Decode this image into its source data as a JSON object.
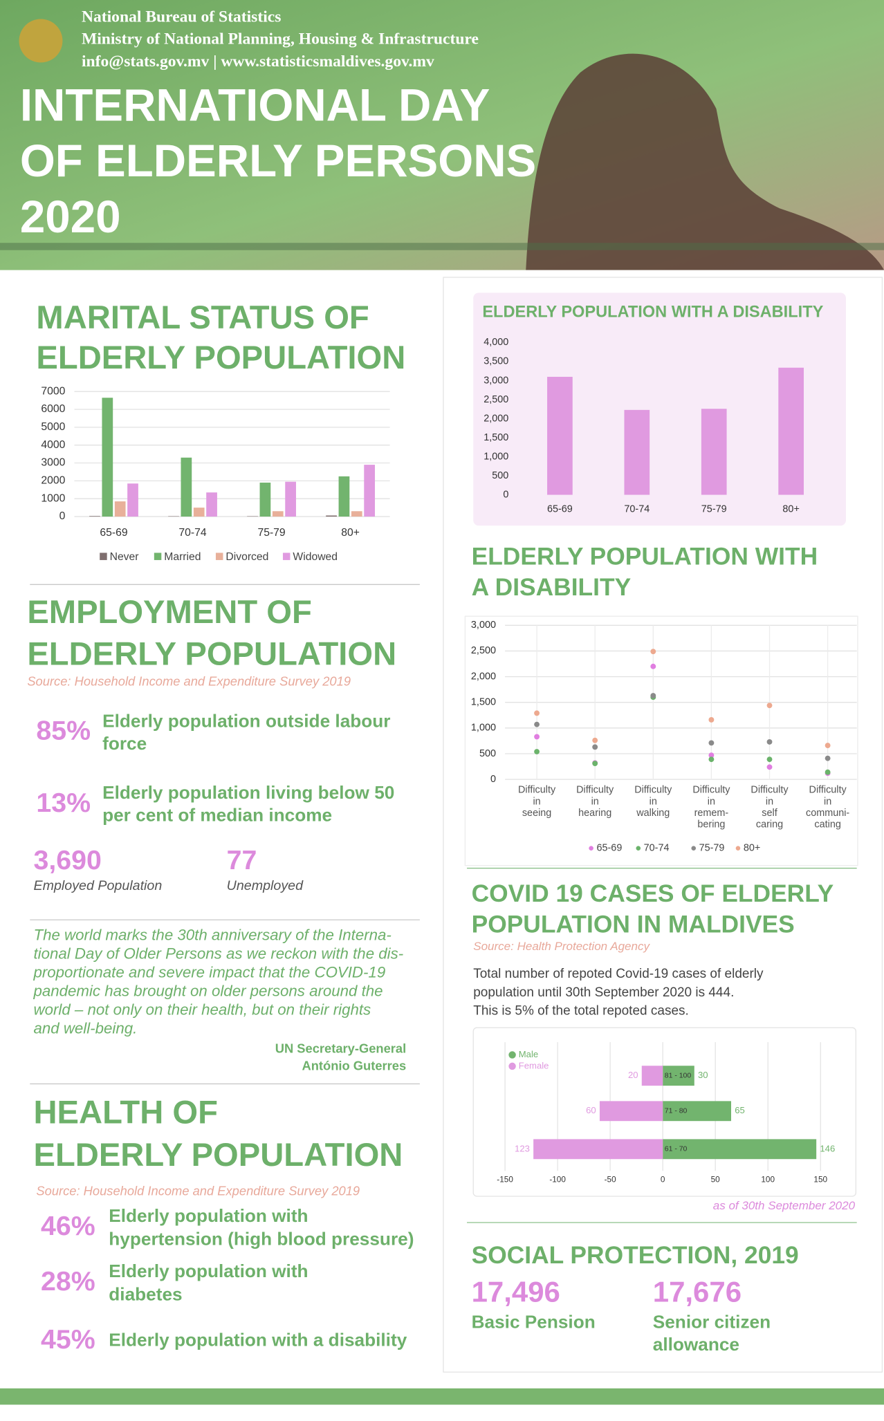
{
  "header": {
    "org_lines": [
      "National Bureau of Statistics",
      "Ministry of National Planning, Housing & Infrastructure",
      "info@stats.gov.mv | www.statisticsmaldives.gov.mv"
    ],
    "title_lines": [
      "INTERNATIONAL DAY",
      "OF ELDERLY PERSONS",
      "2020"
    ]
  },
  "chart_data": [
    {
      "type": "grouped-bar",
      "title_lines": [
        "MARITAL STATUS OF",
        "ELDERLY POPULATION"
      ],
      "categories": [
        "65-69",
        "70-74",
        "75-79",
        "80+"
      ],
      "series": [
        {
          "name": "Never",
          "color": "#7f6f6f",
          "values": [
            30,
            20,
            20,
            60
          ]
        },
        {
          "name": "Married",
          "color": "#72b46e",
          "values": [
            6650,
            3300,
            1900,
            2250
          ]
        },
        {
          "name": "Divorced",
          "color": "#e8b09a",
          "values": [
            850,
            500,
            300,
            300
          ]
        },
        {
          "name": "Widowed",
          "color": "#e09ae0",
          "values": [
            1850,
            1350,
            1950,
            2900
          ]
        }
      ],
      "ylim": [
        0,
        7000
      ],
      "yticks": [
        0,
        1000,
        2000,
        3000,
        4000,
        5000,
        6000,
        7000
      ],
      "grid": true,
      "legend": "bottom"
    },
    {
      "type": "bar",
      "title": "ELDERLY POPULATION WITH A DISABILITY",
      "categories": [
        "65-69",
        "70-74",
        "75-79",
        "80+"
      ],
      "values": [
        3100,
        2230,
        2260,
        3340
      ],
      "color": "#e09ae0",
      "ylim": [
        0,
        4000
      ],
      "yticks": [
        0,
        500,
        {
          "value": 1000,
          "label": "1,000"
        },
        {
          "value": 1500,
          "label": "1,500"
        },
        {
          "value": 2000,
          "label": "2,000"
        },
        {
          "value": 2500,
          "label": "2,500"
        },
        {
          "value": 3000,
          "label": "3,000"
        },
        {
          "value": 3500,
          "label": "3,500"
        },
        {
          "value": 4000,
          "label": "4,000"
        }
      ]
    },
    {
      "type": "dot",
      "title_lines": [
        "ELDERLY POPULATION WITH",
        "A DISABILITY"
      ],
      "categories": [
        [
          "Difficulty",
          "in",
          "seeing"
        ],
        [
          "Difficulty",
          "in",
          "hearing"
        ],
        [
          "Difficulty",
          "in",
          "walking"
        ],
        [
          "Difficulty",
          "in",
          "remem-",
          "bering"
        ],
        [
          "Difficulty",
          "in",
          "self",
          "caring"
        ],
        [
          "Difficulty",
          "in",
          "communi-",
          "cating"
        ]
      ],
      "series": [
        {
          "name": "65-69",
          "color": "#e07ee0",
          "values": [
            830,
            320,
            2200,
            470,
            240,
            120
          ]
        },
        {
          "name": "70-74",
          "color": "#6bb36b",
          "values": [
            540,
            310,
            1600,
            390,
            390,
            140
          ]
        },
        {
          "name": "75-79",
          "color": "#8a8a8a",
          "values": [
            1070,
            630,
            1630,
            710,
            730,
            410
          ]
        },
        {
          "name": "80+",
          "color": "#eda98f",
          "values": [
            1290,
            760,
            2490,
            1160,
            1440,
            660
          ]
        }
      ],
      "ylim": [
        0,
        3000
      ],
      "yticks": [
        0,
        500,
        {
          "value": 1000,
          "label": "1,000"
        },
        {
          "value": 1500,
          "label": "1,500"
        },
        {
          "value": 2000,
          "label": "2,000"
        },
        {
          "value": 2500,
          "label": "2,500"
        },
        {
          "value": 3000,
          "label": "3,000"
        }
      ],
      "grid": true,
      "legend": "bottom"
    },
    {
      "type": "hbar",
      "title_lines": [
        "COVID 19 CASES OF ELDERLY",
        "POPULATION IN MALDIVES"
      ],
      "source": "Source: Health Protection Agency",
      "description_lines": [
        "Total number of repoted Covid-19 cases of elderly",
        "population until 30th September 2020 is 444.",
        "This is 5% of the total repoted cases."
      ],
      "categories": [
        "81 - 100",
        "71 - 80",
        "61 - 70"
      ],
      "series": [
        {
          "name": "Male",
          "color": "#72b46e",
          "values": [
            30,
            65,
            146
          ]
        },
        {
          "name": "Female",
          "color": "#e09ae0",
          "values": [
            -20,
            -60,
            -123
          ],
          "value_labels": [
            "20",
            "60",
            "123"
          ]
        }
      ],
      "xlim": [
        -150,
        150
      ],
      "xticks": [
        -150,
        -100,
        -50,
        0,
        50,
        100,
        150
      ],
      "grid": true,
      "legend": "top-left",
      "note": "as of 30th September 2020"
    }
  ],
  "employment": {
    "title_lines": [
      "EMPLOYMENT OF",
      "ELDERLY POPULATION"
    ],
    "source": "Source: Household Income and Expenditure Survey 2019",
    "stats": [
      {
        "value": "85%",
        "label_lines": [
          "Elderly population outside labour",
          "force"
        ]
      },
      {
        "value": "13%",
        "label_lines": [
          "Elderly population  living below 50",
          "per cent of median income"
        ]
      }
    ],
    "counts": [
      {
        "value": "3,690",
        "label": "Employed Population"
      },
      {
        "value": "77",
        "label": "Unemployed"
      }
    ]
  },
  "quote": {
    "lines": [
      "The world marks the 30th anniversary of the Interna-",
      "tional Day of Older Persons as we reckon with the dis-",
      "proportionate and severe impact that the COVID-19",
      "pandemic has brought on older persons around the",
      "world – not only on their health, but on their rights",
      "and well-being."
    ],
    "attribution_lines": [
      "UN Secretary-General",
      "António Guterres"
    ]
  },
  "health": {
    "title_lines": [
      "HEALTH OF",
      "ELDERLY POPULATION"
    ],
    "source": "Source: Household Income and Expenditure Survey 2019",
    "stats": [
      {
        "value": "46%",
        "label_lines": [
          "Elderly population with",
          "hypertension (high blood pressure)"
        ]
      },
      {
        "value": "28%",
        "label_lines": [
          "Elderly population with",
          "diabetes"
        ]
      },
      {
        "value": "45%",
        "label_lines": [
          "Elderly population with a disability"
        ]
      }
    ]
  },
  "social_protection": {
    "title": "SOCIAL PROTECTION, 2019",
    "items": [
      {
        "value": "17,496",
        "label_lines": [
          "Basic Pension"
        ]
      },
      {
        "value": "17,676",
        "label_lines": [
          "Senior citizen",
          "allowance"
        ]
      }
    ]
  }
}
